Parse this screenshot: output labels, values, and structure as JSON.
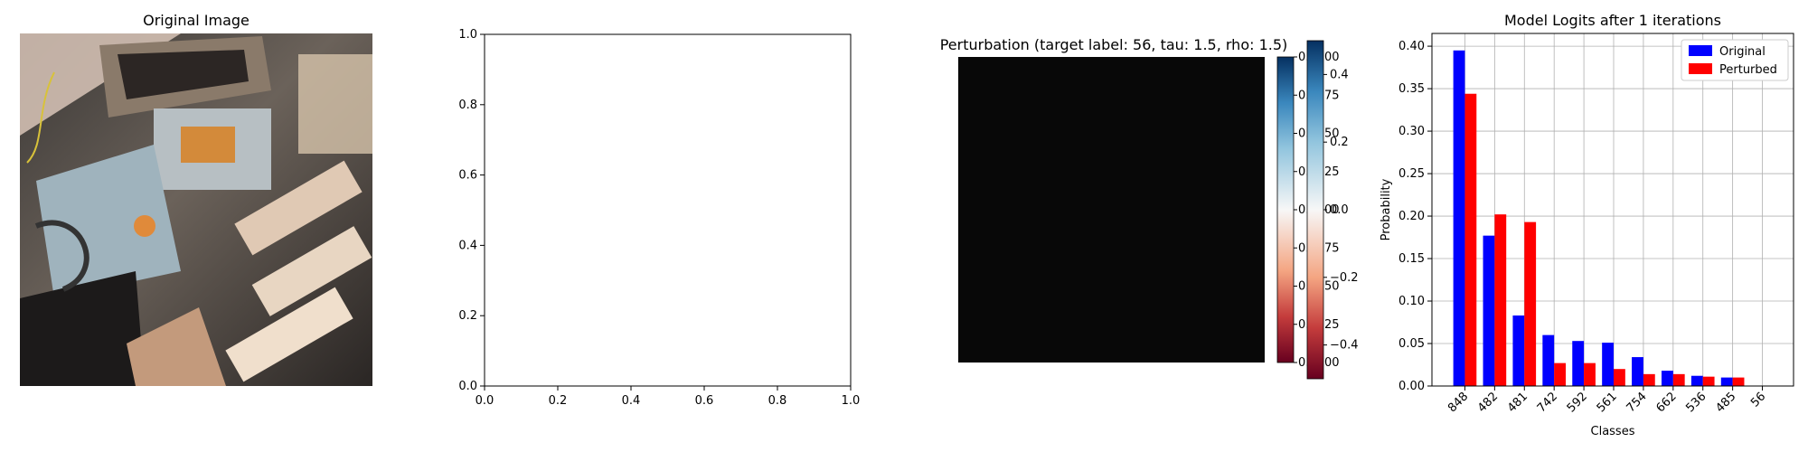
{
  "panels": {
    "original": {
      "title": "Original Image"
    },
    "empty": {
      "x_ticks": [
        "0.0",
        "0.2",
        "0.4",
        "0.6",
        "0.8",
        "1.0"
      ],
      "y_ticks": [
        "0.0",
        "0.2",
        "0.4",
        "0.6",
        "0.8",
        "1.0"
      ]
    },
    "perturbation": {
      "title": "Perturbation (target label: 56, tau: 1.5, rho: 1.5)",
      "colorbar1_ticks": [
        "0.0200",
        "0.0175",
        "0.0150",
        "0.0125",
        "0.0100",
        "0.0075",
        "0.0050",
        "0.0025",
        "0.0000"
      ],
      "colorbar2_ticks": [
        "0.4",
        "0.2",
        "0.0",
        "−0.2",
        "−0.4"
      ]
    }
  },
  "chart_data": [
    {
      "type": "bar",
      "title": "Model Logits after 1 iterations",
      "xlabel": "Classes",
      "ylabel": "Probability",
      "categories": [
        "848",
        "482",
        "481",
        "742",
        "592",
        "561",
        "754",
        "662",
        "536",
        "485",
        "56"
      ],
      "series": [
        {
          "name": "Original",
          "color": "#0000ff",
          "values": [
            0.395,
            0.177,
            0.083,
            0.06,
            0.053,
            0.051,
            0.034,
            0.018,
            0.012,
            0.01,
            0.0
          ]
        },
        {
          "name": "Perturbed",
          "color": "#ff0000",
          "values": [
            0.344,
            0.202,
            0.193,
            0.027,
            0.027,
            0.02,
            0.014,
            0.014,
            0.011,
            0.01,
            0.0
          ]
        }
      ],
      "ylim": [
        0,
        0.415
      ],
      "y_ticks": [
        "0.00",
        "0.05",
        "0.10",
        "0.15",
        "0.20",
        "0.25",
        "0.30",
        "0.35",
        "0.40"
      ],
      "grid": true,
      "legend": "top-right"
    }
  ]
}
